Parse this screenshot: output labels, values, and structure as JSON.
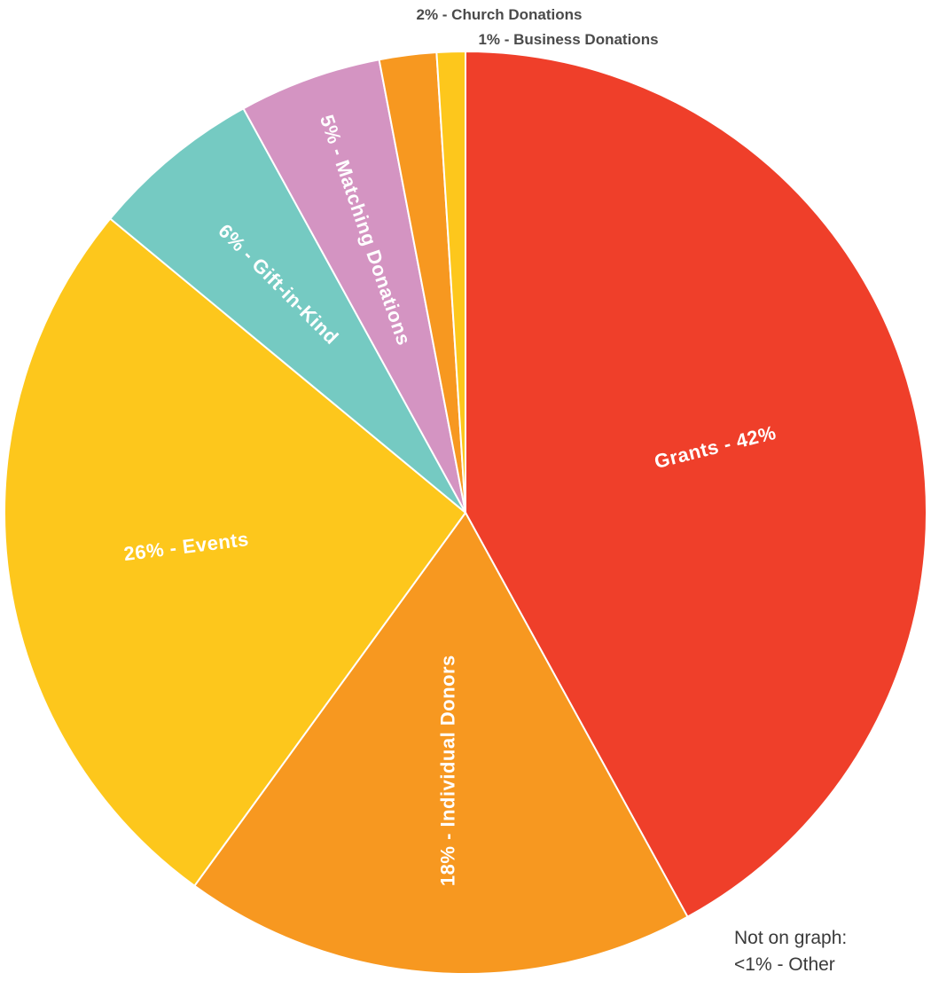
{
  "chart_data": {
    "type": "pie",
    "slices": [
      {
        "label": "Grants - 42%",
        "value": 42,
        "color": "#ef3f2a"
      },
      {
        "label": "18% - Individual Donors",
        "value": 18,
        "color": "#f79820"
      },
      {
        "label": "26% - Events",
        "value": 26,
        "color": "#fdc71c"
      },
      {
        "label": "6% - Gift-in-Kind",
        "value": 6,
        "color": "#75cac2"
      },
      {
        "label": "5% - Matching Donations",
        "value": 5,
        "color": "#d494c2"
      },
      {
        "label": "2% - Church Donations",
        "value": 2,
        "color": "#f79820"
      },
      {
        "label": "1% - Business Donations",
        "value": 1,
        "color": "#fdc71c"
      }
    ],
    "note": {
      "line1": "Not on graph:",
      "line2": "<1% - Other"
    }
  }
}
